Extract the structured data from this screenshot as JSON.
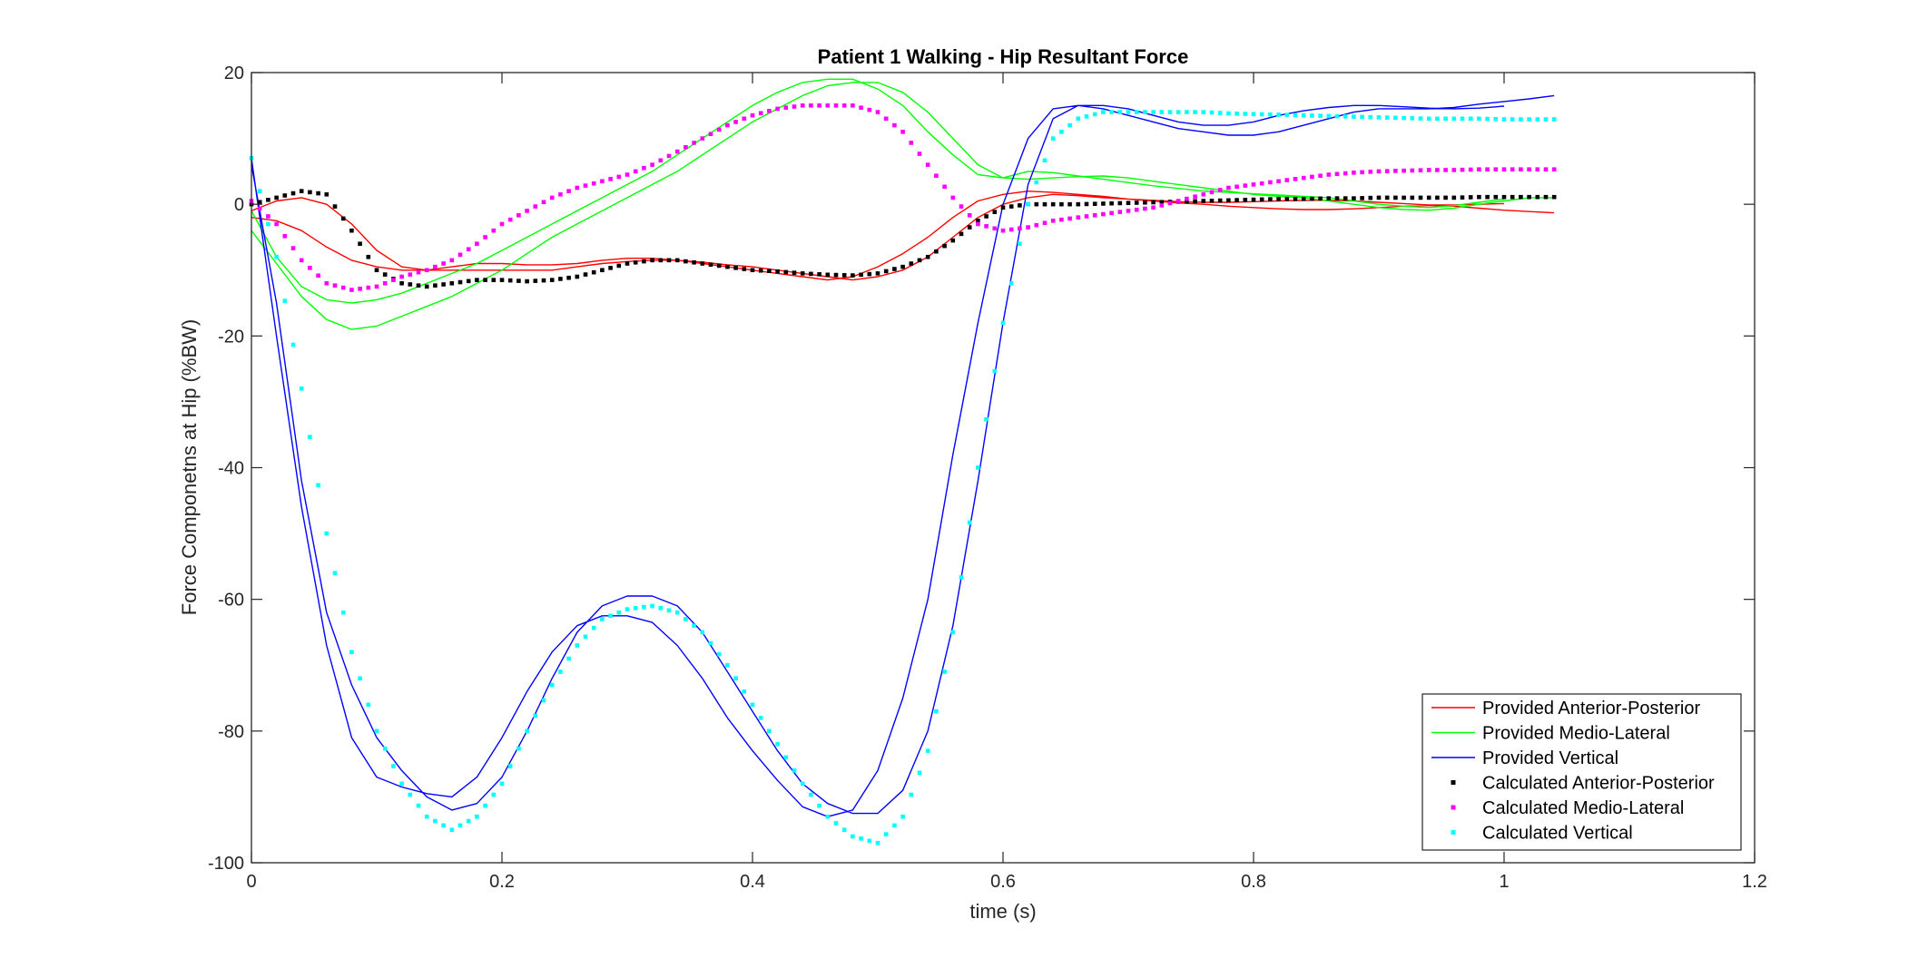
{
  "chart_data": {
    "type": "line",
    "title": "Patient 1 Walking - Hip Resultant Force",
    "xlabel": "time (s)",
    "ylabel": "Force Componetns at Hip (%BW)",
    "xlim": [
      0,
      1.2
    ],
    "ylim": [
      -100,
      20
    ],
    "xticks": [
      0,
      0.2,
      0.4,
      0.6,
      0.8,
      1,
      1.2
    ],
    "xtick_labels": [
      "0",
      "0.2",
      "0.4",
      "0.6",
      "0.8",
      "1",
      "1.2"
    ],
    "yticks": [
      -100,
      -80,
      -60,
      -40,
      -20,
      0,
      20
    ],
    "ytick_labels": [
      "-100",
      "-80",
      "-60",
      "-40",
      "-20",
      "0",
      "20"
    ],
    "grid": false,
    "legend_position": "bottom-right",
    "series": [
      {
        "name": "Provided Anterior-Posterior",
        "style": "line",
        "color": "#ff0000",
        "x": [
          0,
          0.02,
          0.04,
          0.06,
          0.08,
          0.1,
          0.12,
          0.14,
          0.16,
          0.18,
          0.2,
          0.22,
          0.24,
          0.26,
          0.28,
          0.3,
          0.32,
          0.34,
          0.36,
          0.38,
          0.4,
          0.42,
          0.44,
          0.46,
          0.48,
          0.5,
          0.52,
          0.54,
          0.56,
          0.58,
          0.6,
          0.62,
          0.64,
          0.66,
          0.68,
          0.7,
          0.72,
          0.74,
          0.76,
          0.78,
          0.8,
          0.82,
          0.84,
          0.86,
          0.88,
          0.9,
          0.92,
          0.94,
          0.96,
          0.98,
          1.0,
          1.02,
          1.04,
          null,
          0,
          0.02,
          0.04,
          0.06,
          0.08,
          0.1,
          0.12,
          0.14,
          0.16,
          0.18,
          0.2,
          0.22,
          0.24,
          0.26,
          0.28,
          0.3,
          0.32,
          0.34,
          0.36,
          0.38,
          0.4,
          0.42,
          0.44,
          0.46,
          0.48,
          0.5,
          0.52,
          0.54,
          0.56,
          0.58,
          0.6,
          0.62,
          0.64,
          0.66,
          0.68,
          0.7,
          0.72,
          0.74,
          0.76,
          0.78,
          0.8,
          0.82,
          0.84,
          0.86,
          0.88,
          0.9,
          0.92,
          0.94,
          0.96,
          0.98,
          1.0
        ],
        "y": [
          -2,
          -2.5,
          -4,
          -6.5,
          -8.5,
          -9.5,
          -10,
          -10,
          -9.5,
          -9,
          -9,
          -9.2,
          -9.2,
          -9,
          -8.5,
          -8.2,
          -8.2,
          -8.5,
          -9,
          -9.5,
          -10,
          -10.5,
          -11,
          -11.5,
          -11,
          -9.5,
          -7.5,
          -5,
          -2,
          0.5,
          1.5,
          2,
          1.8,
          1.5,
          1.2,
          0.8,
          0.5,
          0.2,
          0,
          -0.3,
          -0.5,
          -0.7,
          -0.8,
          -0.8,
          -0.7,
          -0.5,
          -0.3,
          -0.2,
          -0.3,
          -0.6,
          -0.9,
          -1.1,
          -1.3,
          null,
          -1,
          0.5,
          1,
          0,
          -3,
          -7,
          -9.5,
          -10,
          -10,
          -10,
          -10,
          -10,
          -10,
          -9.5,
          -9,
          -8.7,
          -8.5,
          -8.5,
          -8.8,
          -9.2,
          -9.5,
          -10,
          -10.5,
          -11,
          -11.5,
          -11,
          -10,
          -8,
          -5,
          -2,
          0,
          1,
          1.5,
          1.3,
          1,
          0.8,
          0.6,
          0.4,
          0.3,
          0.3,
          0.4,
          0.5,
          0.6,
          0.6,
          0.5,
          0.3,
          0.1,
          -0.1,
          -0.1,
          0,
          0.1
        ]
      },
      {
        "name": "Provided Medio-Lateral",
        "style": "line",
        "color": "#00ff00",
        "x": [
          0,
          0.02,
          0.04,
          0.06,
          0.08,
          0.1,
          0.12,
          0.14,
          0.16,
          0.18,
          0.2,
          0.22,
          0.24,
          0.26,
          0.28,
          0.3,
          0.32,
          0.34,
          0.36,
          0.38,
          0.4,
          0.42,
          0.44,
          0.46,
          0.48,
          0.5,
          0.52,
          0.54,
          0.56,
          0.58,
          0.6,
          0.62,
          0.64,
          0.66,
          0.68,
          0.7,
          0.72,
          0.74,
          0.76,
          0.78,
          0.8,
          0.82,
          0.84,
          0.86,
          0.88,
          0.9,
          0.92,
          0.94,
          0.96,
          0.98,
          1.0,
          1.02,
          1.04,
          null,
          0,
          0.02,
          0.04,
          0.06,
          0.08,
          0.1,
          0.12,
          0.14,
          0.16,
          0.18,
          0.2,
          0.22,
          0.24,
          0.26,
          0.28,
          0.3,
          0.32,
          0.34,
          0.36,
          0.38,
          0.4,
          0.42,
          0.44,
          0.46,
          0.48,
          0.5,
          0.52,
          0.54,
          0.56,
          0.58,
          0.6,
          0.62,
          0.64,
          0.66,
          0.68,
          0.7,
          0.72,
          0.74,
          0.76,
          0.78,
          0.8,
          0.82,
          0.84,
          0.86,
          0.88,
          0.9,
          0.92,
          0.94,
          0.96,
          0.98,
          1.0
        ],
        "y": [
          -4,
          -9,
          -14,
          -17.5,
          -19,
          -18.5,
          -17,
          -15.5,
          -14,
          -12,
          -10,
          -7.5,
          -5,
          -3,
          -1,
          1,
          3,
          5,
          7.5,
          10,
          12.5,
          14.5,
          16.5,
          18,
          18.5,
          18.5,
          17,
          14,
          10,
          6,
          4,
          3.8,
          4,
          4.2,
          4.3,
          4,
          3.5,
          3,
          2.5,
          2,
          1.5,
          1.2,
          1,
          0.5,
          0,
          -0.5,
          -0.8,
          -0.9,
          -0.6,
          0,
          0.5,
          1,
          1,
          null,
          -1,
          -8,
          -12.5,
          -14.5,
          -15,
          -14.5,
          -13.5,
          -12,
          -10.5,
          -9,
          -7,
          -5,
          -3,
          -1,
          1,
          3,
          5,
          7.5,
          10,
          12.5,
          15,
          17,
          18.5,
          19,
          19,
          17.5,
          15,
          11,
          7.5,
          4.5,
          4,
          5,
          4.8,
          4.3,
          3.8,
          3.3,
          2.8,
          2.4,
          2,
          1.8,
          1.6,
          1.4,
          1.2,
          1,
          0.5,
          0,
          -0.3,
          -0.5,
          -0.2,
          0.3,
          0.8
        ]
      },
      {
        "name": "Provided Vertical",
        "style": "line",
        "color": "#0000ff",
        "x": [
          0,
          0.02,
          0.04,
          0.06,
          0.08,
          0.1,
          0.12,
          0.14,
          0.16,
          0.18,
          0.2,
          0.22,
          0.24,
          0.26,
          0.28,
          0.3,
          0.32,
          0.34,
          0.36,
          0.38,
          0.4,
          0.42,
          0.44,
          0.46,
          0.48,
          0.5,
          0.52,
          0.54,
          0.56,
          0.58,
          0.6,
          0.62,
          0.64,
          0.66,
          0.68,
          0.7,
          0.72,
          0.74,
          0.76,
          0.78,
          0.8,
          0.82,
          0.84,
          0.86,
          0.88,
          0.9,
          0.92,
          0.94,
          0.96,
          0.98,
          1.0,
          1.02,
          1.04,
          null,
          0,
          0.02,
          0.04,
          0.06,
          0.08,
          0.1,
          0.12,
          0.14,
          0.16,
          0.18,
          0.2,
          0.22,
          0.24,
          0.26,
          0.28,
          0.3,
          0.32,
          0.34,
          0.36,
          0.38,
          0.4,
          0.42,
          0.44,
          0.46,
          0.48,
          0.5,
          0.52,
          0.54,
          0.56,
          0.58,
          0.6,
          0.62,
          0.64,
          0.66,
          0.68,
          0.7,
          0.72,
          0.74,
          0.76,
          0.78,
          0.8,
          0.82,
          0.84,
          0.86,
          0.88,
          0.9,
          0.92,
          0.94,
          0.96,
          0.98,
          1.0
        ],
        "y": [
          7,
          -20,
          -46,
          -67,
          -81,
          -87,
          -88.5,
          -89.5,
          -90,
          -87,
          -81,
          -74,
          -68,
          -64,
          -62.5,
          -62.5,
          -63.5,
          -67,
          -72,
          -78,
          -83,
          -87.5,
          -91.5,
          -93,
          -92,
          -86,
          -75,
          -60,
          -38,
          -18,
          0,
          10,
          14.5,
          15,
          14.5,
          13.5,
          12.5,
          11.5,
          11,
          10.5,
          10.5,
          11,
          12,
          13,
          14,
          14.5,
          14.5,
          14.5,
          14.7,
          15.2,
          15.6,
          16,
          16.5,
          null,
          6,
          -15,
          -42,
          -62,
          -73,
          -81,
          -86,
          -90,
          -92,
          -91,
          -87,
          -80,
          -72,
          -65,
          -61,
          -59.5,
          -59.5,
          -61,
          -65,
          -71,
          -77,
          -83,
          -88,
          -91,
          -92.5,
          -92.5,
          -89,
          -80,
          -64,
          -42,
          -18,
          3,
          13,
          15,
          15,
          14.5,
          13.5,
          12.5,
          12,
          12,
          12.5,
          13.5,
          14.2,
          14.7,
          15,
          15,
          14.8,
          14.6,
          14.5,
          14.6,
          14.9
        ]
      },
      {
        "name": "Calculated Anterior-Posterior",
        "style": "dots",
        "color": "#000000",
        "x": [
          0,
          0.02,
          0.04,
          0.06,
          0.08,
          0.1,
          0.12,
          0.14,
          0.16,
          0.18,
          0.2,
          0.22,
          0.24,
          0.26,
          0.28,
          0.3,
          0.32,
          0.34,
          0.36,
          0.38,
          0.4,
          0.42,
          0.44,
          0.46,
          0.48,
          0.5,
          0.52,
          0.54,
          0.56,
          0.58,
          0.6,
          0.62,
          0.64,
          0.66,
          0.68,
          0.7,
          0.72,
          0.74,
          0.76,
          0.78,
          0.8,
          0.82,
          0.84,
          0.86,
          0.88,
          0.9,
          0.92,
          0.94,
          0.96,
          0.98,
          1.0,
          1.02,
          1.04
        ],
        "y": [
          0,
          1,
          2,
          1.5,
          -4,
          -10,
          -12,
          -12.5,
          -12,
          -11.5,
          -11.5,
          -11.7,
          -11.5,
          -11,
          -10,
          -9,
          -8.5,
          -8.5,
          -9,
          -9.5,
          -10,
          -10.2,
          -10.5,
          -10.7,
          -10.8,
          -10.5,
          -9.5,
          -8,
          -5.5,
          -2.5,
          -0.5,
          0,
          0,
          0,
          0.1,
          0.2,
          0.3,
          0.4,
          0.5,
          0.6,
          0.7,
          0.8,
          0.8,
          0.9,
          0.9,
          1,
          1,
          1,
          1,
          1.1,
          1.1,
          1.1,
          1.1
        ]
      },
      {
        "name": "Calculated Medio-Lateral",
        "style": "dots",
        "color": "#ff00ff",
        "x": [
          0,
          0.02,
          0.04,
          0.06,
          0.08,
          0.1,
          0.12,
          0.14,
          0.16,
          0.18,
          0.2,
          0.22,
          0.24,
          0.26,
          0.28,
          0.3,
          0.32,
          0.34,
          0.36,
          0.38,
          0.4,
          0.42,
          0.44,
          0.46,
          0.48,
          0.5,
          0.52,
          0.54,
          0.56,
          0.58,
          0.6,
          0.62,
          0.64,
          0.66,
          0.68,
          0.7,
          0.72,
          0.74,
          0.76,
          0.78,
          0.8,
          0.82,
          0.84,
          0.86,
          0.88,
          0.9,
          0.92,
          0.94,
          0.96,
          0.98,
          1.0,
          1.02,
          1.04
        ],
        "y": [
          0.5,
          -3,
          -8.5,
          -12,
          -13,
          -12.5,
          -11,
          -10,
          -8.5,
          -6,
          -3,
          -1,
          1,
          2.5,
          3.5,
          4.5,
          6,
          8,
          10,
          12,
          13.5,
          14.5,
          15,
          15,
          15,
          14,
          11,
          6,
          1,
          -3,
          -4,
          -3.5,
          -2.5,
          -2,
          -1.5,
          -1,
          -0.5,
          0.5,
          1.5,
          2.5,
          3,
          3.5,
          4,
          4.5,
          4.8,
          5,
          5.1,
          5.2,
          5.2,
          5.3,
          5.3,
          5.3,
          5.3
        ]
      },
      {
        "name": "Calculated Vertical",
        "style": "dots",
        "color": "#00ffff",
        "x": [
          0,
          0.02,
          0.04,
          0.06,
          0.08,
          0.1,
          0.12,
          0.14,
          0.16,
          0.18,
          0.2,
          0.22,
          0.24,
          0.26,
          0.28,
          0.3,
          0.32,
          0.34,
          0.36,
          0.38,
          0.4,
          0.42,
          0.44,
          0.46,
          0.48,
          0.5,
          0.52,
          0.54,
          0.56,
          0.58,
          0.6,
          0.62,
          0.64,
          0.66,
          0.68,
          0.7,
          0.72,
          0.74,
          0.76,
          0.78,
          0.8,
          0.82,
          0.84,
          0.86,
          0.88,
          0.9,
          0.92,
          0.94,
          0.96,
          0.98,
          1.0,
          1.02,
          1.04
        ],
        "y": [
          7,
          -8,
          -28,
          -50,
          -68,
          -80,
          -88,
          -93,
          -95,
          -93,
          -88,
          -80,
          -73,
          -67,
          -63,
          -61.5,
          -61,
          -62,
          -65,
          -70,
          -76,
          -82,
          -88,
          -93,
          -96,
          -97,
          -93,
          -83,
          -65,
          -40,
          -18,
          0,
          10,
          13,
          14,
          14,
          14,
          14,
          14,
          13.8,
          13.7,
          13.6,
          13.5,
          13.4,
          13.3,
          13.2,
          13.1,
          13,
          13,
          13,
          12.9,
          12.9,
          12.9
        ]
      }
    ]
  }
}
